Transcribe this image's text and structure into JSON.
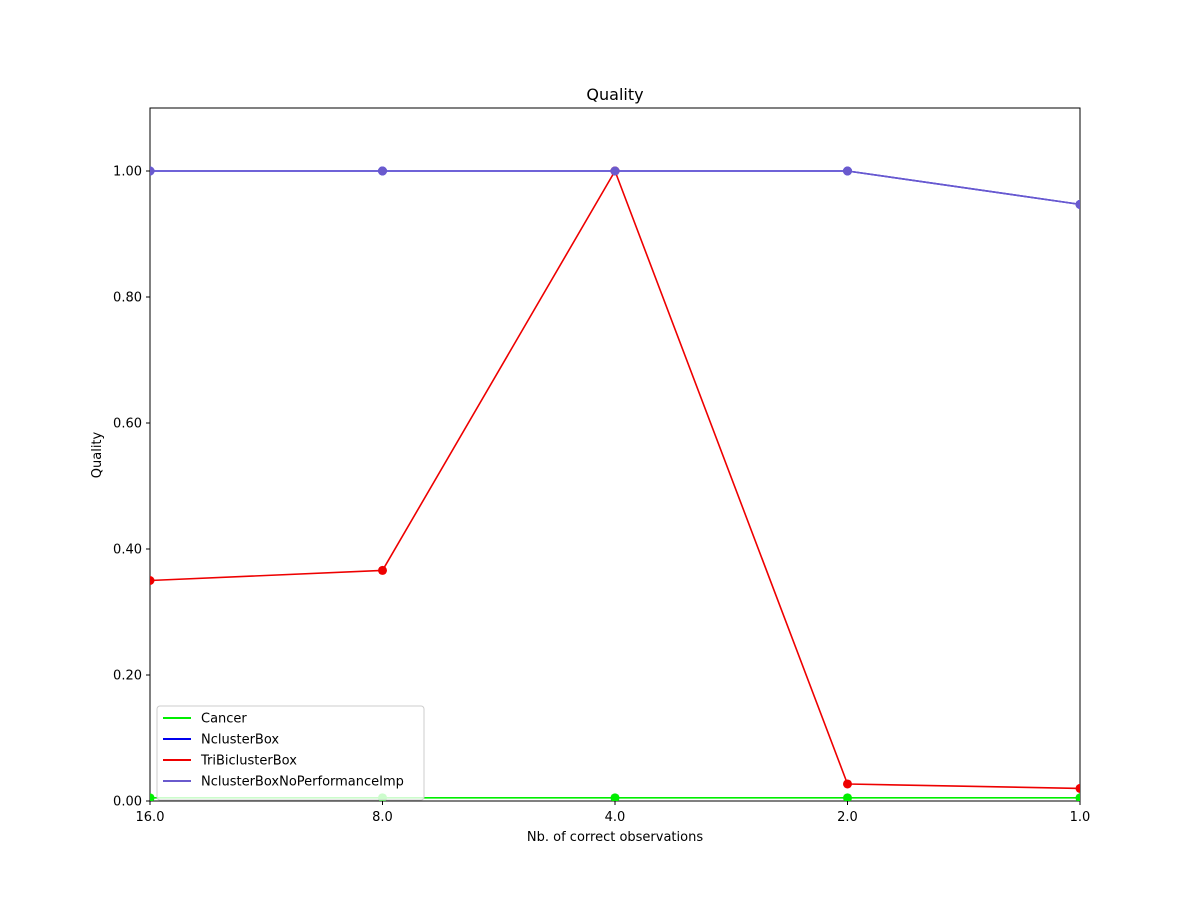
{
  "chart_data": {
    "type": "line",
    "title": "Quality",
    "xlabel": "Nb. of correct observations",
    "ylabel": "Quality",
    "x": [
      "16.0",
      "8.0",
      "4.0",
      "2.0",
      "1.0"
    ],
    "yticks": [
      "0.00",
      "0.20",
      "0.40",
      "0.60",
      "0.80",
      "1.00"
    ],
    "ylim": [
      0,
      1.1
    ],
    "grid": false,
    "legend_position": "lower-left",
    "series": [
      {
        "name": "Cancer",
        "color": "#00ee00",
        "values": [
          0.005,
          0.005,
          0.005,
          0.005,
          0.005
        ]
      },
      {
        "name": "NclusterBox",
        "color": "#0000ee",
        "values": [
          1.0,
          1.0,
          1.0,
          1.0,
          0.947
        ]
      },
      {
        "name": "TriBiclusterBox",
        "color": "#ee0000",
        "values": [
          0.35,
          0.366,
          1.0,
          0.027,
          0.02
        ]
      },
      {
        "name": "NclusterBoxNoPerformanceImp",
        "color": "#6a5acd",
        "values": [
          1.0,
          1.0,
          1.0,
          1.0,
          0.947
        ]
      }
    ]
  }
}
